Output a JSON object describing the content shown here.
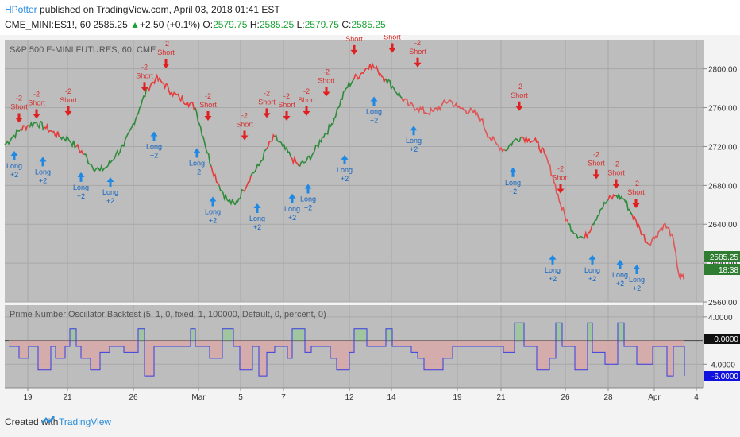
{
  "header": {
    "author": "HPotter",
    "published_text": "published on TradingView.com, April 03, 2018 01:41 EST",
    "symbol": "CME_MINI:ES1!, 60",
    "last": "2585.25",
    "change": "+2.50 (+0.1%)",
    "open_label": "O:",
    "open": "2579.75",
    "high_label": "H:",
    "high": "2585.25",
    "low_label": "L:",
    "low": "2579.75",
    "close_label": "C:",
    "close": "2585.25"
  },
  "main_pane": {
    "title": "S&P 500 E-MINI FUTURES, 60, CME"
  },
  "indicator_pane": {
    "title": "Prime Number Oscillator Backtest (5, 1, 0, fixed, 1, 100000, Default, 0, percent, 0)"
  },
  "footer": {
    "created_with": "Created with",
    "brand": "TradingView"
  },
  "chart_data": [
    {
      "type": "line",
      "title": "S&P 500 E-MINI FUTURES, 60, CME",
      "ylim": [
        2560,
        2830
      ],
      "y_ticks": [
        "2800.00",
        "2760.00",
        "2720.00",
        "2680.00",
        "2640.00",
        "2600.00",
        "2560.00"
      ],
      "y_tick_values": [
        2800,
        2760,
        2720,
        2680,
        2640,
        2600,
        2560
      ],
      "x_ticks": [
        "19",
        "21",
        "26",
        "Mar",
        "5",
        "7",
        "12",
        "14",
        "19",
        "21",
        "26",
        "28",
        "Apr",
        "4"
      ],
      "price_label": "2585.25",
      "countdown": "18:38",
      "colors": {
        "long": "#2e8b3a",
        "short": "#e63b3b",
        "neutral": "#e05555"
      },
      "series": [
        {
          "x": [
            0,
            10,
            20,
            30,
            40,
            50,
            60,
            70,
            80,
            90,
            100,
            110,
            120,
            130,
            140,
            150,
            160,
            170,
            180,
            190,
            200,
            210,
            220,
            230,
            240,
            250,
            260,
            270,
            280,
            290,
            300,
            310,
            320,
            330,
            340,
            350,
            360,
            370,
            380,
            390,
            400,
            410,
            420,
            430,
            440,
            450,
            460,
            470,
            480,
            490,
            500,
            510,
            520,
            530,
            540,
            550,
            560,
            570,
            580,
            590,
            600,
            610,
            620,
            630,
            640,
            650,
            660,
            670,
            680,
            690,
            700,
            710,
            720,
            730,
            740,
            750,
            760,
            770,
            780,
            790,
            800,
            810,
            820,
            830,
            840,
            850,
            856
          ],
          "values": [
            2722,
            2730,
            2738,
            2742,
            2745,
            2740,
            2735,
            2730,
            2728,
            2720,
            2712,
            2700,
            2695,
            2700,
            2712,
            2720,
            2740,
            2760,
            2780,
            2790,
            2785,
            2776,
            2770,
            2766,
            2760,
            2730,
            2700,
            2680,
            2665,
            2660,
            2675,
            2690,
            2700,
            2718,
            2730,
            2720,
            2710,
            2700,
            2705,
            2715,
            2730,
            2740,
            2760,
            2780,
            2790,
            2796,
            2805,
            2798,
            2790,
            2780,
            2770,
            2762,
            2760,
            2755,
            2756,
            2762,
            2768,
            2760,
            2758,
            2755,
            2748,
            2730,
            2722,
            2716,
            2725,
            2730,
            2728,
            2724,
            2712,
            2690,
            2660,
            2640,
            2630,
            2625,
            2640,
            2655,
            2665,
            2670,
            2666,
            2650,
            2635,
            2620,
            2628,
            2640,
            2630,
            2585,
            2585
          ],
          "segment_colors": [
            "long",
            "long",
            "short",
            "long",
            "long",
            "short",
            "short",
            "long",
            "long",
            "short",
            "long",
            "long",
            "long",
            "long",
            "long",
            "long",
            "long",
            "long",
            "short",
            "short",
            "short",
            "short",
            "short",
            "short",
            "long",
            "long",
            "short",
            "long",
            "long",
            "long",
            "short",
            "long",
            "long",
            "short",
            "long",
            "long",
            "short",
            "long",
            "long",
            "long",
            "long",
            "long",
            "long",
            "long",
            "short",
            "short",
            "short",
            "short",
            "long",
            "long",
            "neutral",
            "neutral",
            "neutral",
            "neutral",
            "neutral",
            "neutral",
            "neutral",
            "neutral",
            "neutral",
            "neutral",
            "neutral",
            "neutral",
            "neutral",
            "long",
            "long",
            "short",
            "short",
            "short",
            "neutral",
            "neutral",
            "neutral",
            "long",
            "long",
            "short",
            "long",
            "long",
            "short",
            "long",
            "long",
            "short",
            "short",
            "neutral",
            "neutral",
            "neutral",
            "neutral",
            "neutral",
            "neutral"
          ]
        }
      ],
      "signals": [
        {
          "x": 18,
          "y": 2738,
          "side": "short"
        },
        {
          "x": 40,
          "y": 2742,
          "side": "short"
        },
        {
          "x": 80,
          "y": 2745,
          "side": "short"
        },
        {
          "x": 176,
          "y": 2770,
          "side": "short"
        },
        {
          "x": 203,
          "y": 2794,
          "side": "short"
        },
        {
          "x": 256,
          "y": 2740,
          "side": "short"
        },
        {
          "x": 302,
          "y": 2720,
          "side": "short"
        },
        {
          "x": 330,
          "y": 2743,
          "side": "short"
        },
        {
          "x": 355,
          "y": 2740,
          "side": "short"
        },
        {
          "x": 380,
          "y": 2745,
          "side": "short"
        },
        {
          "x": 405,
          "y": 2765,
          "side": "short"
        },
        {
          "x": 440,
          "y": 2808,
          "side": "short"
        },
        {
          "x": 488,
          "y": 2810,
          "side": "short"
        },
        {
          "x": 520,
          "y": 2795,
          "side": "short"
        },
        {
          "x": 648,
          "y": 2750,
          "side": "short"
        },
        {
          "x": 700,
          "y": 2665,
          "side": "short"
        },
        {
          "x": 745,
          "y": 2680,
          "side": "short"
        },
        {
          "x": 770,
          "y": 2670,
          "side": "short"
        },
        {
          "x": 795,
          "y": 2650,
          "side": "short"
        },
        {
          "x": 12,
          "y": 2722,
          "side": "long"
        },
        {
          "x": 48,
          "y": 2716,
          "side": "long"
        },
        {
          "x": 96,
          "y": 2700,
          "side": "long"
        },
        {
          "x": 133,
          "y": 2695,
          "side": "long"
        },
        {
          "x": 188,
          "y": 2742,
          "side": "long"
        },
        {
          "x": 242,
          "y": 2725,
          "side": "long"
        },
        {
          "x": 262,
          "y": 2675,
          "side": "long"
        },
        {
          "x": 318,
          "y": 2668,
          "side": "long"
        },
        {
          "x": 362,
          "y": 2678,
          "side": "long"
        },
        {
          "x": 382,
          "y": 2688,
          "side": "long"
        },
        {
          "x": 428,
          "y": 2718,
          "side": "long"
        },
        {
          "x": 465,
          "y": 2778,
          "side": "long"
        },
        {
          "x": 515,
          "y": 2748,
          "side": "long"
        },
        {
          "x": 640,
          "y": 2705,
          "side": "long"
        },
        {
          "x": 690,
          "y": 2615,
          "side": "long"
        },
        {
          "x": 740,
          "y": 2615,
          "side": "long"
        },
        {
          "x": 775,
          "y": 2610,
          "side": "long"
        },
        {
          "x": 796,
          "y": 2605,
          "side": "long"
        }
      ],
      "signal_labels": {
        "short_amount": "-2",
        "short_text": "Short",
        "long_text": "Long",
        "long_amount": "+2"
      }
    },
    {
      "type": "line",
      "title": "Prime Number Oscillator Backtest (5, 1, 0, fixed, 1, 100000, Default, 0, percent, 0)",
      "ylim": [
        -8,
        6
      ],
      "y_ticks": [
        "4.0000",
        "0.0000",
        "-4.0000"
      ],
      "y_tick_values": [
        4,
        0,
        -4
      ],
      "last_value_label": "-6.0000",
      "zero_label": "0.0000",
      "series": [
        {
          "x": [
            5,
            14,
            18,
            24,
            30,
            36,
            42,
            50,
            58,
            64,
            70,
            76,
            82,
            86,
            90,
            96,
            102,
            108,
            114,
            120,
            126,
            132,
            140,
            150,
            160,
            168,
            176,
            182,
            188,
            196,
            204,
            212,
            220,
            228,
            234,
            240,
            246,
            252,
            258,
            266,
            274,
            280,
            288,
            296,
            304,
            312,
            320,
            330,
            340,
            348,
            356,
            362,
            370,
            378,
            386,
            394,
            402,
            410,
            418,
            426,
            434,
            440,
            448,
            456,
            464,
            472,
            480,
            488,
            496,
            504,
            512,
            520,
            528,
            540,
            552,
            564,
            576,
            590,
            604,
            616,
            628,
            636,
            642,
            648,
            654,
            662,
            670,
            678,
            686,
            694,
            702,
            710,
            718,
            726,
            734,
            740,
            748,
            756,
            764,
            772,
            780,
            788,
            796,
            806,
            816,
            826,
            834,
            842,
            852,
            856
          ],
          "values": [
            -1,
            -1,
            -3,
            -3,
            -1,
            -1,
            -5,
            -5,
            -1,
            -3,
            -3,
            -1,
            2,
            2,
            -1,
            -3,
            -3,
            -5,
            -5,
            -2,
            -2,
            -1,
            -1,
            -2,
            -2,
            2,
            -6,
            -6,
            -1,
            -1,
            -1,
            -1,
            -1,
            -1,
            2,
            -1,
            -1,
            -1,
            -3,
            -3,
            2,
            2,
            -1,
            -5,
            -5,
            -1,
            -6,
            -2,
            -1,
            -1,
            -3,
            2,
            2,
            -2,
            -1,
            -1,
            -1,
            -3,
            -5,
            -5,
            -2,
            2,
            2,
            -1,
            -1,
            -1,
            2,
            -1,
            -1,
            -1,
            -2,
            -3,
            -5,
            -5,
            -3,
            -1,
            -1,
            -1,
            -1,
            -1,
            -2,
            -2,
            3,
            3,
            -1,
            -1,
            -5,
            -5,
            -3,
            3,
            -1,
            -1,
            -5,
            -5,
            3,
            -2,
            -2,
            -4,
            -4,
            3,
            -1,
            -1,
            -4,
            -4,
            -1,
            -1,
            -6,
            -1,
            -1,
            -6
          ]
        }
      ]
    }
  ]
}
